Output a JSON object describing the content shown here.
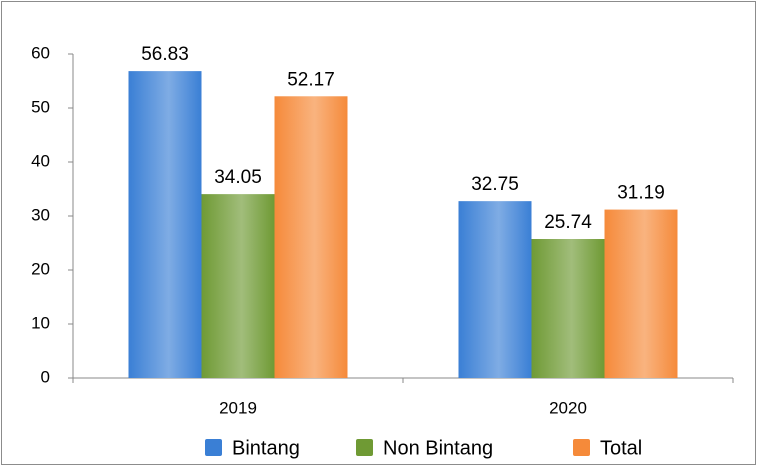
{
  "chart_data": {
    "type": "bar",
    "categories": [
      "2019",
      "2020"
    ],
    "series": [
      {
        "name": "Bintang",
        "color": "#3a7fd5",
        "values": [
          56.83,
          32.75
        ]
      },
      {
        "name": "Non Bintang",
        "color": "#6f9a34",
        "values": [
          34.05,
          25.74
        ]
      },
      {
        "name": "Total",
        "color": "#f58a3a",
        "values": [
          52.17,
          31.19
        ]
      }
    ],
    "ylim": [
      0,
      60
    ],
    "yticks": [
      0,
      10,
      20,
      30,
      40,
      50,
      60
    ],
    "grid": false,
    "legend": "bottom"
  }
}
